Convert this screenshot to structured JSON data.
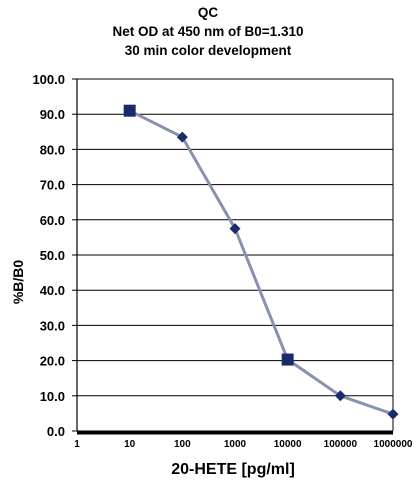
{
  "chart_data": {
    "type": "line",
    "title_lines": [
      "QC",
      "Net OD at 450  nm of B0=1.310",
      "30  min color development"
    ],
    "xlabel": "20-HETE  [pg/ml]",
    "ylabel": "%B/B0",
    "x_scale": "log",
    "xlim": [
      1,
      1000000
    ],
    "ylim": [
      0,
      100
    ],
    "x_ticks": [
      "1",
      "10",
      "100",
      "1000",
      "10000",
      "100000",
      "1000000"
    ],
    "y_ticks": [
      "0.0",
      "10.0",
      "20.0",
      "30.0",
      "40.0",
      "50.0",
      "60.0",
      "70.0",
      "80.0",
      "90.0",
      "100.0"
    ],
    "grid": true,
    "series": [
      {
        "x": [
          10,
          100,
          1000,
          10000,
          100000,
          1000000
        ],
        "y": [
          91.0,
          83.5,
          57.5,
          20.3,
          10.0,
          4.8
        ],
        "markers": [
          "square",
          "diamond",
          "diamond",
          "square",
          "diamond",
          "diamond"
        ],
        "marker_color": "#1b2a6b",
        "line_color": "#8891ad"
      }
    ]
  }
}
